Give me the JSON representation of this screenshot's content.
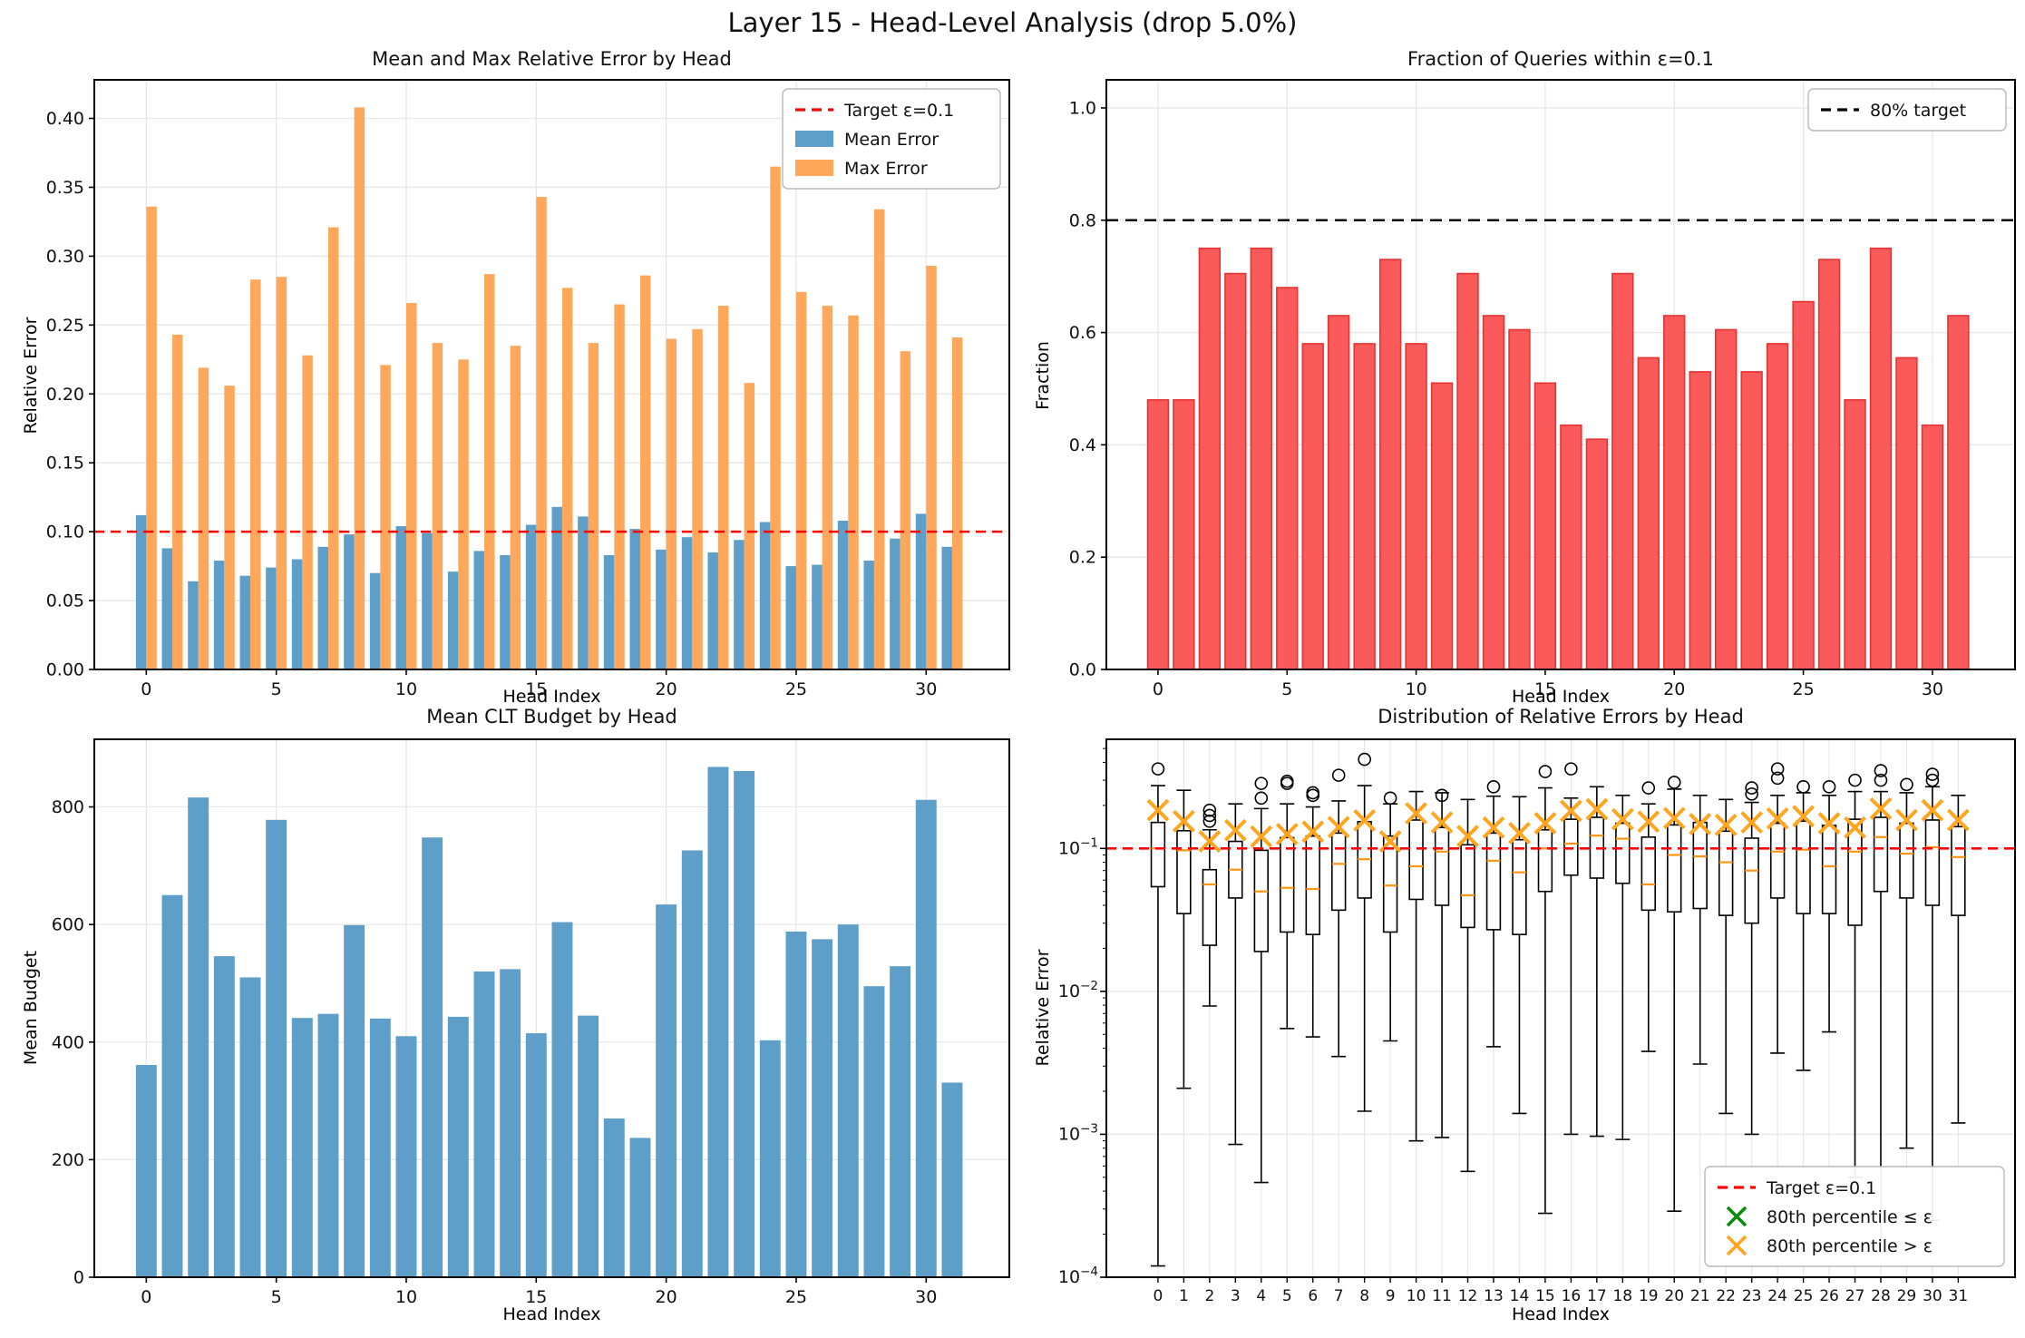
{
  "figure": {
    "title": "Layer 15 - Head-Level Analysis (drop 5.0%)"
  },
  "colors": {
    "mean_bar": "#5e9fc9",
    "max_bar": "#ffa85c",
    "fraction_bar_fill": "#fb5a5a",
    "fraction_bar_edge": "#e63232",
    "budget_bar": "#5d9fc9",
    "target_red": "#ff0000",
    "target_black": "#000000",
    "median_orange": "#ff9514",
    "p80_below": "#0a8a0a",
    "p80_above": "#ffa520",
    "flier_edge": "#000000",
    "grid": "#e7e7e7",
    "spine": "#000000",
    "box_edge": "#000000",
    "box_fill": "#ffffff"
  },
  "chart_data": [
    {
      "id": "error_by_head",
      "type": "bar",
      "title": "Mean and Max Relative Error by Head",
      "xlabel": "Head Index",
      "ylabel": "Relative Error",
      "n_heads": 32,
      "xticks": [
        0,
        5,
        10,
        15,
        20,
        25,
        30
      ],
      "yticks": [
        "0.00",
        "0.05",
        "0.10",
        "0.15",
        "0.20",
        "0.25",
        "0.30",
        "0.35",
        "0.40"
      ],
      "ylim": [
        0,
        0.428
      ],
      "target": 0.1,
      "grid": true,
      "legend_position": "upper-right",
      "legend": [
        {
          "sample": "dash",
          "color": "#ff0000",
          "label": "Target ε=0.1"
        },
        {
          "sample": "swatch",
          "color": "#5e9fc9",
          "label": "Mean Error"
        },
        {
          "sample": "swatch",
          "color": "#ffa85c",
          "label": "Max Error"
        }
      ],
      "series": [
        {
          "name": "Mean Error",
          "values": [
            0.112,
            0.088,
            0.064,
            0.079,
            0.068,
            0.074,
            0.08,
            0.089,
            0.098,
            0.07,
            0.104,
            0.099,
            0.071,
            0.086,
            0.083,
            0.105,
            0.118,
            0.111,
            0.083,
            0.102,
            0.087,
            0.096,
            0.085,
            0.094,
            0.107,
            0.075,
            0.076,
            0.108,
            0.079,
            0.095,
            0.113,
            0.089
          ]
        },
        {
          "name": "Max Error",
          "values": [
            0.336,
            0.243,
            0.219,
            0.206,
            0.283,
            0.285,
            0.228,
            0.321,
            0.408,
            0.221,
            0.266,
            0.237,
            0.225,
            0.287,
            0.235,
            0.343,
            0.277,
            0.237,
            0.265,
            0.286,
            0.24,
            0.247,
            0.264,
            0.208,
            0.365,
            0.274,
            0.264,
            0.257,
            0.334,
            0.231,
            0.293,
            0.241
          ]
        }
      ]
    },
    {
      "id": "fraction_within_eps",
      "type": "bar",
      "title": "Fraction of Queries within ε=0.1",
      "xlabel": "Head Index",
      "ylabel": "Fraction",
      "n_heads": 32,
      "xticks": [
        0,
        5,
        10,
        15,
        20,
        25,
        30
      ],
      "yticks": [
        "0.0",
        "0.2",
        "0.4",
        "0.6",
        "0.8",
        "1.0"
      ],
      "ylim": [
        0,
        1.05
      ],
      "target": 0.8,
      "grid": true,
      "legend_position": "upper-right",
      "legend": [
        {
          "sample": "dash",
          "color": "#000000",
          "label": "80% target"
        }
      ],
      "values": [
        0.48,
        0.48,
        0.75,
        0.705,
        0.75,
        0.68,
        0.58,
        0.63,
        0.58,
        0.73,
        0.58,
        0.51,
        0.705,
        0.63,
        0.605,
        0.51,
        0.435,
        0.41,
        0.705,
        0.555,
        0.63,
        0.53,
        0.605,
        0.53,
        0.58,
        0.655,
        0.73,
        0.48,
        0.75,
        0.555,
        0.435,
        0.63
      ]
    },
    {
      "id": "mean_clt_budget",
      "type": "bar",
      "title": "Mean CLT Budget by Head",
      "xlabel": "Head Index",
      "ylabel": "Mean Budget",
      "n_heads": 32,
      "xticks": [
        0,
        5,
        10,
        15,
        20,
        25,
        30
      ],
      "yticks": [
        "0",
        "200",
        "400",
        "600",
        "800"
      ],
      "ylim": [
        0,
        915
      ],
      "grid": true,
      "values": [
        361,
        650,
        816,
        546,
        510,
        778,
        441,
        448,
        599,
        440,
        410,
        748,
        443,
        520,
        524,
        415,
        604,
        445,
        270,
        237,
        634,
        726,
        868,
        861,
        403,
        588,
        575,
        600,
        495,
        529,
        812,
        331
      ]
    },
    {
      "id": "error_distribution",
      "type": "boxplot",
      "title": "Distribution of Relative Errors by Head",
      "xlabel": "Head Index",
      "ylabel": "Relative Error",
      "n_heads": 32,
      "yscale": "log",
      "ylim": [
        0.0001,
        0.58
      ],
      "ytick_exponents": [
        -4,
        -3,
        -2,
        -1
      ],
      "xticks": [
        0,
        1,
        2,
        3,
        4,
        5,
        6,
        7,
        8,
        9,
        10,
        11,
        12,
        13,
        14,
        15,
        16,
        17,
        18,
        19,
        20,
        21,
        22,
        23,
        24,
        25,
        26,
        27,
        28,
        29,
        30,
        31
      ],
      "target": 0.1,
      "grid": true,
      "legend_position": "lower-right",
      "legend": [
        {
          "sample": "dash",
          "color": "#ff0000",
          "label": "Target ε=0.1"
        },
        {
          "sample": "xmark",
          "color": "#0a8a0a",
          "label": "80th percentile ≤ ε"
        },
        {
          "sample": "xmark",
          "color": "#ffa520",
          "label": "80th percentile > ε"
        }
      ],
      "boxes": [
        {
          "whislo": 0.00012,
          "q1": 0.054,
          "med": 0.1,
          "q3": 0.152,
          "whishi": 0.275,
          "p80": 0.185,
          "fliers": [
            0.36
          ]
        },
        {
          "whislo": 0.0021,
          "q1": 0.035,
          "med": 0.097,
          "q3": 0.133,
          "whishi": 0.255,
          "p80": 0.155,
          "fliers": []
        },
        {
          "whislo": 0.0079,
          "q1": 0.021,
          "med": 0.056,
          "q3": 0.071,
          "whishi": 0.135,
          "p80": 0.112,
          "fliers": [
            0.155,
            0.17,
            0.185
          ]
        },
        {
          "whislo": 0.00085,
          "q1": 0.045,
          "med": 0.071,
          "q3": 0.112,
          "whishi": 0.205,
          "p80": 0.134,
          "fliers": []
        },
        {
          "whislo": 0.00046,
          "q1": 0.019,
          "med": 0.05,
          "q3": 0.097,
          "whishi": 0.19,
          "p80": 0.121,
          "fliers": [
            0.225,
            0.285
          ]
        },
        {
          "whislo": 0.0055,
          "q1": 0.026,
          "med": 0.053,
          "q3": 0.119,
          "whishi": 0.205,
          "p80": 0.126,
          "fliers": [
            0.285,
            0.295
          ]
        },
        {
          "whislo": 0.0048,
          "q1": 0.025,
          "med": 0.052,
          "q3": 0.122,
          "whishi": 0.195,
          "p80": 0.131,
          "fliers": [
            0.235,
            0.245
          ]
        },
        {
          "whislo": 0.0035,
          "q1": 0.037,
          "med": 0.078,
          "q3": 0.128,
          "whishi": 0.215,
          "p80": 0.141,
          "fliers": [
            0.325
          ]
        },
        {
          "whislo": 0.00145,
          "q1": 0.045,
          "med": 0.084,
          "q3": 0.154,
          "whishi": 0.275,
          "p80": 0.157,
          "fliers": [
            0.42
          ]
        },
        {
          "whislo": 0.0045,
          "q1": 0.026,
          "med": 0.055,
          "q3": 0.122,
          "whishi": 0.205,
          "p80": 0.112,
          "fliers": [
            0.225
          ]
        },
        {
          "whislo": 0.0009,
          "q1": 0.044,
          "med": 0.075,
          "q3": 0.158,
          "whishi": 0.25,
          "p80": 0.176,
          "fliers": []
        },
        {
          "whislo": 0.00095,
          "q1": 0.04,
          "med": 0.095,
          "q3": 0.14,
          "whishi": 0.245,
          "p80": 0.152,
          "fliers": [
            0.235
          ]
        },
        {
          "whislo": 0.00055,
          "q1": 0.028,
          "med": 0.047,
          "q3": 0.106,
          "whishi": 0.22,
          "p80": 0.122,
          "fliers": []
        },
        {
          "whislo": 0.0041,
          "q1": 0.027,
          "med": 0.082,
          "q3": 0.128,
          "whishi": 0.232,
          "p80": 0.14,
          "fliers": [
            0.27
          ]
        },
        {
          "whislo": 0.0014,
          "q1": 0.025,
          "med": 0.068,
          "q3": 0.115,
          "whishi": 0.23,
          "p80": 0.128,
          "fliers": []
        },
        {
          "whislo": 0.00028,
          "q1": 0.05,
          "med": 0.1,
          "q3": 0.135,
          "whishi": 0.265,
          "p80": 0.15,
          "fliers": [
            0.345
          ]
        },
        {
          "whislo": 0.001,
          "q1": 0.065,
          "med": 0.108,
          "q3": 0.16,
          "whishi": 0.225,
          "p80": 0.183,
          "fliers": [
            0.36
          ]
        },
        {
          "whislo": 0.00097,
          "q1": 0.062,
          "med": 0.123,
          "q3": 0.165,
          "whishi": 0.27,
          "p80": 0.188,
          "fliers": []
        },
        {
          "whislo": 0.00092,
          "q1": 0.057,
          "med": 0.117,
          "q3": 0.15,
          "whishi": 0.235,
          "p80": 0.16,
          "fliers": []
        },
        {
          "whislo": 0.0038,
          "q1": 0.037,
          "med": 0.056,
          "q3": 0.12,
          "whishi": 0.205,
          "p80": 0.154,
          "fliers": [
            0.265
          ]
        },
        {
          "whislo": 0.00029,
          "q1": 0.036,
          "med": 0.09,
          "q3": 0.146,
          "whishi": 0.26,
          "p80": 0.163,
          "fliers": [
            0.29
          ]
        },
        {
          "whislo": 0.0031,
          "q1": 0.038,
          "med": 0.088,
          "q3": 0.152,
          "whishi": 0.235,
          "p80": 0.148,
          "fliers": []
        },
        {
          "whislo": 0.0014,
          "q1": 0.034,
          "med": 0.08,
          "q3": 0.132,
          "whishi": 0.22,
          "p80": 0.146,
          "fliers": []
        },
        {
          "whislo": 0.001,
          "q1": 0.03,
          "med": 0.07,
          "q3": 0.118,
          "whishi": 0.21,
          "p80": 0.152,
          "fliers": [
            0.24,
            0.265
          ]
        },
        {
          "whislo": 0.0037,
          "q1": 0.045,
          "med": 0.095,
          "q3": 0.15,
          "whishi": 0.235,
          "p80": 0.162,
          "fliers": [
            0.31,
            0.36
          ]
        },
        {
          "whislo": 0.0028,
          "q1": 0.035,
          "med": 0.098,
          "q3": 0.155,
          "whishi": 0.245,
          "p80": 0.168,
          "fliers": [
            0.27
          ]
        },
        {
          "whislo": 0.0052,
          "q1": 0.035,
          "med": 0.075,
          "q3": 0.145,
          "whishi": 0.235,
          "p80": 0.15,
          "fliers": [
            0.27
          ]
        },
        {
          "whislo": 0.0005,
          "q1": 0.029,
          "med": 0.095,
          "q3": 0.16,
          "whishi": 0.25,
          "p80": 0.14,
          "fliers": [
            0.3
          ]
        },
        {
          "whislo": 0.00015,
          "q1": 0.05,
          "med": 0.12,
          "q3": 0.165,
          "whishi": 0.25,
          "p80": 0.19,
          "fliers": [
            0.3,
            0.35
          ]
        },
        {
          "whislo": 0.0008,
          "q1": 0.045,
          "med": 0.092,
          "q3": 0.15,
          "whishi": 0.245,
          "p80": 0.158,
          "fliers": [
            0.28
          ]
        },
        {
          "whislo": 0.00025,
          "q1": 0.04,
          "med": 0.102,
          "q3": 0.158,
          "whishi": 0.27,
          "p80": 0.185,
          "fliers": [
            0.3,
            0.33
          ]
        },
        {
          "whislo": 0.0012,
          "q1": 0.034,
          "med": 0.087,
          "q3": 0.142,
          "whishi": 0.235,
          "p80": 0.158,
          "fliers": []
        }
      ]
    }
  ]
}
